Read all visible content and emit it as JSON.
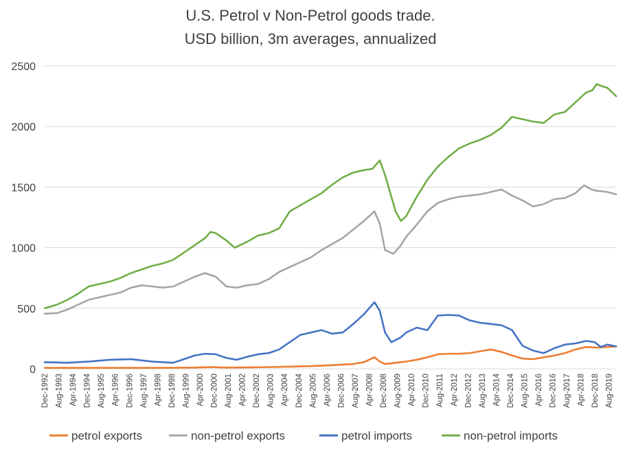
{
  "chart_data": {
    "type": "line",
    "title_lines": [
      "U.S. Petrol v Non-Petrol goods trade.",
      "USD billion, 3m averages, annualized"
    ],
    "xlabel": "",
    "ylabel": "",
    "ylim": [
      0,
      2500
    ],
    "yticks": [
      0,
      500,
      1000,
      1500,
      2000,
      2500
    ],
    "ytick_labels": [
      "0",
      "500",
      "1000",
      "1500",
      "2000",
      "2500"
    ],
    "x_range": [
      1992.917,
      2019.917
    ],
    "x_tick_labels": [
      "Dec-1992",
      "Aug-1993",
      "Apr-1994",
      "Dec-1994",
      "Aug-1995",
      "Apr-1996",
      "Dec-1996",
      "Aug-1997",
      "Apr-1998",
      "Dec-1998",
      "Aug-1999",
      "Apr-2000",
      "Dec-2000",
      "Aug-2001",
      "Apr-2002",
      "Dec-2002",
      "Aug-2003",
      "Apr-2004",
      "Dec-2004",
      "Aug-2005",
      "Apr-2006",
      "Dec-2006",
      "Aug-2007",
      "Apr-2008",
      "Dec-2008",
      "Aug-2009",
      "Apr-2010",
      "Dec-2010",
      "Aug-2011",
      "Apr-2012",
      "Dec-2012",
      "Aug-2013",
      "Apr-2014",
      "Dec-2014",
      "Aug-2015",
      "Apr-2016",
      "Dec-2016",
      "Aug-2017",
      "Apr-2018",
      "Dec-2018",
      "Aug-2019"
    ],
    "grid": true,
    "legend_position": "bottom",
    "series": [
      {
        "name": "petrol exports",
        "color": "#ED7D31",
        "x": [
          1992.92,
          1995,
          1998,
          2000,
          2000.75,
          2001.5,
          2002.5,
          2003.5,
          2004.5,
          2005.5,
          2006.5,
          2007.5,
          2008.0,
          2008.5,
          2008.75,
          2009.0,
          2009.5,
          2010.0,
          2010.5,
          2011.0,
          2011.5,
          2012.0,
          2012.5,
          2013.0,
          2013.5,
          2014.0,
          2014.5,
          2015.0,
          2015.5,
          2016.0,
          2016.5,
          2017.0,
          2017.5,
          2018.0,
          2018.5,
          2019.0,
          2019.5,
          2019.92
        ],
        "y": [
          8,
          8,
          8,
          10,
          15,
          10,
          12,
          14,
          18,
          22,
          30,
          40,
          55,
          95,
          60,
          40,
          50,
          60,
          75,
          95,
          120,
          125,
          125,
          130,
          145,
          160,
          140,
          110,
          85,
          80,
          95,
          110,
          130,
          160,
          180,
          175,
          180,
          185
        ]
      },
      {
        "name": "non-petrol exports",
        "color": "#A5A5A5",
        "x": [
          1992.92,
          1993.5,
          1994.0,
          1994.5,
          1995.0,
          1995.5,
          1996.0,
          1996.5,
          1997.0,
          1997.5,
          1998.0,
          1998.5,
          1999.0,
          1999.5,
          2000.0,
          2000.5,
          2001.0,
          2001.5,
          2002.0,
          2002.5,
          2003.0,
          2003.5,
          2004.0,
          2004.5,
          2005.0,
          2005.5,
          2006.0,
          2006.5,
          2007.0,
          2007.5,
          2008.0,
          2008.5,
          2008.75,
          2009.0,
          2009.4,
          2009.75,
          2010.0,
          2010.5,
          2011.0,
          2011.5,
          2012.0,
          2012.5,
          2013.0,
          2013.5,
          2014.0,
          2014.5,
          2015.0,
          2015.5,
          2016.0,
          2016.5,
          2017.0,
          2017.5,
          2018.0,
          2018.4,
          2018.75,
          2019.0,
          2019.5,
          2019.92
        ],
        "y": [
          455,
          460,
          490,
          530,
          570,
          590,
          610,
          630,
          670,
          690,
          680,
          670,
          680,
          720,
          760,
          790,
          760,
          680,
          670,
          690,
          700,
          740,
          800,
          840,
          880,
          920,
          980,
          1030,
          1080,
          1150,
          1220,
          1300,
          1200,
          980,
          950,
          1020,
          1090,
          1190,
          1300,
          1370,
          1400,
          1420,
          1430,
          1440,
          1460,
          1480,
          1430,
          1390,
          1340,
          1360,
          1400,
          1410,
          1450,
          1515,
          1480,
          1470,
          1460,
          1440
        ]
      },
      {
        "name": "petrol imports",
        "color": "#4472C4",
        "x": [
          1992.92,
          1994,
          1995,
          1996,
          1997,
          1998,
          1999.0,
          1999.5,
          2000.0,
          2000.5,
          2001.0,
          2001.5,
          2002.0,
          2002.5,
          2003.0,
          2003.5,
          2004.0,
          2004.5,
          2005.0,
          2005.5,
          2006.0,
          2006.5,
          2007.0,
          2007.5,
          2008.0,
          2008.5,
          2008.75,
          2009.0,
          2009.3,
          2009.75,
          2010.0,
          2010.5,
          2011.0,
          2011.5,
          2012.0,
          2012.5,
          2013.0,
          2013.5,
          2014.0,
          2014.5,
          2015.0,
          2015.5,
          2016.0,
          2016.5,
          2017.0,
          2017.5,
          2018.0,
          2018.5,
          2018.9,
          2019.2,
          2019.5,
          2019.92
        ],
        "y": [
          55,
          50,
          60,
          75,
          80,
          60,
          50,
          80,
          110,
          125,
          120,
          90,
          75,
          100,
          120,
          130,
          160,
          220,
          280,
          300,
          320,
          290,
          300,
          370,
          450,
          550,
          480,
          300,
          220,
          260,
          300,
          340,
          320,
          440,
          445,
          440,
          400,
          380,
          370,
          360,
          320,
          190,
          150,
          130,
          170,
          200,
          210,
          230,
          220,
          180,
          200,
          185
        ]
      },
      {
        "name": "non-petrol imports",
        "color": "#70AD47",
        "x": [
          1992.92,
          1993.5,
          1994.0,
          1994.5,
          1995.0,
          1995.5,
          1996.0,
          1996.5,
          1997.0,
          1997.5,
          1998.0,
          1998.5,
          1999.0,
          1999.5,
          2000.0,
          2000.5,
          2000.75,
          2001.0,
          2001.5,
          2001.9,
          2002.5,
          2003.0,
          2003.5,
          2004.0,
          2004.5,
          2005.0,
          2005.5,
          2006.0,
          2006.5,
          2007.0,
          2007.5,
          2008.0,
          2008.4,
          2008.75,
          2009.0,
          2009.5,
          2009.75,
          2010.0,
          2010.5,
          2011.0,
          2011.5,
          2012.0,
          2012.5,
          2013.0,
          2013.5,
          2014.0,
          2014.5,
          2015.0,
          2015.5,
          2016.0,
          2016.5,
          2017.0,
          2017.5,
          2018.0,
          2018.5,
          2018.8,
          2019.0,
          2019.3,
          2019.5,
          2019.92
        ],
        "y": [
          500,
          530,
          570,
          620,
          680,
          700,
          720,
          750,
          790,
          820,
          850,
          870,
          900,
          960,
          1020,
          1080,
          1130,
          1120,
          1060,
          1000,
          1050,
          1100,
          1120,
          1160,
          1300,
          1350,
          1400,
          1450,
          1520,
          1580,
          1620,
          1640,
          1650,
          1720,
          1600,
          1300,
          1220,
          1260,
          1420,
          1560,
          1670,
          1750,
          1820,
          1860,
          1890,
          1930,
          1990,
          2080,
          2060,
          2040,
          2030,
          2100,
          2120,
          2200,
          2280,
          2300,
          2350,
          2330,
          2320,
          2250
        ]
      }
    ]
  }
}
